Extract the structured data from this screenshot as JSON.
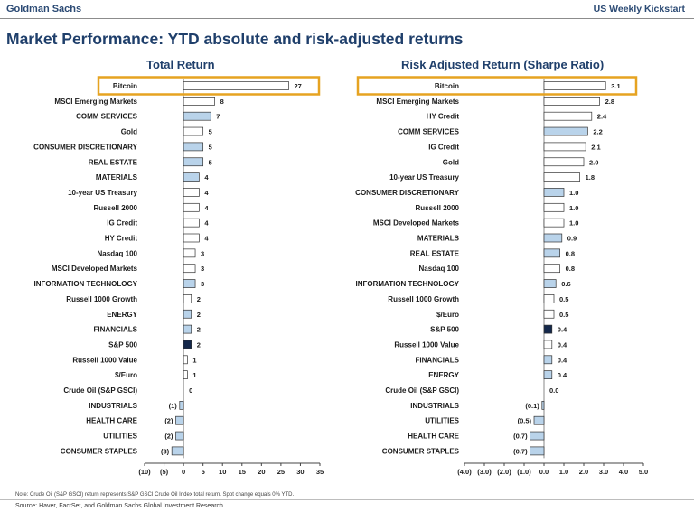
{
  "header": {
    "brand": "Goldman Sachs",
    "report": "US Weekly Kickstart"
  },
  "title": "Market Performance: YTD absolute and risk-adjusted returns",
  "colors": {
    "plain_bar": "#ffffff",
    "sector_bar": "#b9d3ea",
    "sp500_bar": "#14284b",
    "highlight_box": "#e6a321",
    "title_blue": "#1f3f6b"
  },
  "chart_data": [
    {
      "type": "bar",
      "orientation": "horizontal",
      "title": "Total Return",
      "xlim": [
        -10,
        35
      ],
      "xticks": [
        -10,
        -5,
        0,
        5,
        10,
        15,
        20,
        25,
        30,
        35
      ],
      "xtick_labels": [
        "(10)",
        "(5)",
        "0",
        "5",
        "10",
        "15",
        "20",
        "25",
        "30",
        "35"
      ],
      "highlight": "Bitcoin",
      "categories": [
        "Bitcoin",
        "MSCI Emerging Markets",
        "COMM SERVICES",
        "Gold",
        "CONSUMER DISCRETIONARY",
        "REAL ESTATE",
        "MATERIALS",
        "10-year US Treasury",
        "Russell 2000",
        "IG Credit",
        "HY Credit",
        "Nasdaq 100",
        "MSCI Developed Markets",
        "INFORMATION TECHNOLOGY",
        "Russell 1000 Growth",
        "ENERGY",
        "FINANCIALS",
        "S&P 500",
        "Russell 1000 Value",
        "$/Euro",
        "Crude Oil (S&P GSCI)",
        "INDUSTRIALS",
        "HEALTH CARE",
        "UTILITIES",
        "CONSUMER STAPLES"
      ],
      "values": [
        27,
        8,
        7,
        5,
        5,
        5,
        4,
        4,
        4,
        4,
        4,
        3,
        3,
        3,
        2,
        2,
        2,
        2,
        1,
        1,
        0,
        -1,
        -2,
        -2,
        -3
      ],
      "value_labels": [
        "27",
        "8",
        "7",
        "5",
        "5",
        "5",
        "4",
        "4",
        "4",
        "4",
        "4",
        "3",
        "3",
        "3",
        "2",
        "2",
        "2",
        "2",
        "1",
        "1",
        "0",
        "(1)",
        "(2)",
        "(2)",
        "(3)"
      ],
      "groups": [
        "plain",
        "plain",
        "sector",
        "plain",
        "sector",
        "sector",
        "sector",
        "plain",
        "plain",
        "plain",
        "plain",
        "plain",
        "plain",
        "sector",
        "plain",
        "sector",
        "sector",
        "sp500",
        "plain",
        "plain",
        "plain",
        "sector",
        "sector",
        "sector",
        "sector"
      ]
    },
    {
      "type": "bar",
      "orientation": "horizontal",
      "title": "Risk Adjusted Return (Sharpe Ratio)",
      "xlim": [
        -4,
        5
      ],
      "xticks": [
        -4,
        -3,
        -2,
        -1,
        0,
        1,
        2,
        3,
        4,
        5
      ],
      "xtick_labels": [
        "(4.0)",
        "(3.0)",
        "(2.0)",
        "(1.0)",
        "0.0",
        "1.0",
        "2.0",
        "3.0",
        "4.0",
        "5.0"
      ],
      "highlight": "Bitcoin",
      "categories": [
        "Bitcoin",
        "MSCI Emerging Markets",
        "HY Credit",
        "COMM SERVICES",
        "IG Credit",
        "Gold",
        "10-year US Treasury",
        "CONSUMER DISCRETIONARY",
        "Russell 2000",
        "MSCI Developed Markets",
        "MATERIALS",
        "REAL ESTATE",
        "Nasdaq 100",
        "INFORMATION TECHNOLOGY",
        "Russell 1000 Growth",
        "$/Euro",
        "S&P 500",
        "Russell 1000 Value",
        "FINANCIALS",
        "ENERGY",
        "Crude Oil (S&P GSCI)",
        "INDUSTRIALS",
        "UTILITIES",
        "HEALTH CARE",
        "CONSUMER STAPLES"
      ],
      "values": [
        3.1,
        2.8,
        2.4,
        2.2,
        2.1,
        2.0,
        1.8,
        1.0,
        1.0,
        1.0,
        0.9,
        0.8,
        0.8,
        0.6,
        0.5,
        0.5,
        0.4,
        0.4,
        0.4,
        0.4,
        0.0,
        -0.1,
        -0.5,
        -0.7,
        -0.7
      ],
      "value_labels": [
        "3.1",
        "2.8",
        "2.4",
        "2.2",
        "2.1",
        "2.0",
        "1.8",
        "1.0",
        "1.0",
        "1.0",
        "0.9",
        "0.8",
        "0.8",
        "0.6",
        "0.5",
        "0.5",
        "0.4",
        "0.4",
        "0.4",
        "0.4",
        "0.0",
        "(0.1)",
        "(0.5)",
        "(0.7)",
        "(0.7)"
      ],
      "groups": [
        "plain",
        "plain",
        "plain",
        "sector",
        "plain",
        "plain",
        "plain",
        "sector",
        "plain",
        "plain",
        "sector",
        "sector",
        "plain",
        "sector",
        "plain",
        "plain",
        "sp500",
        "plain",
        "sector",
        "sector",
        "plain",
        "sector",
        "sector",
        "sector",
        "sector"
      ]
    }
  ],
  "footnote": "Note: Crude Oil (S&P GSCI) return represents S&P GSCI Crude Oil Index total return. Spot change equals 0% YTD.",
  "source": "Source: Haver, FactSet, and Goldman Sachs Global Investment Research."
}
